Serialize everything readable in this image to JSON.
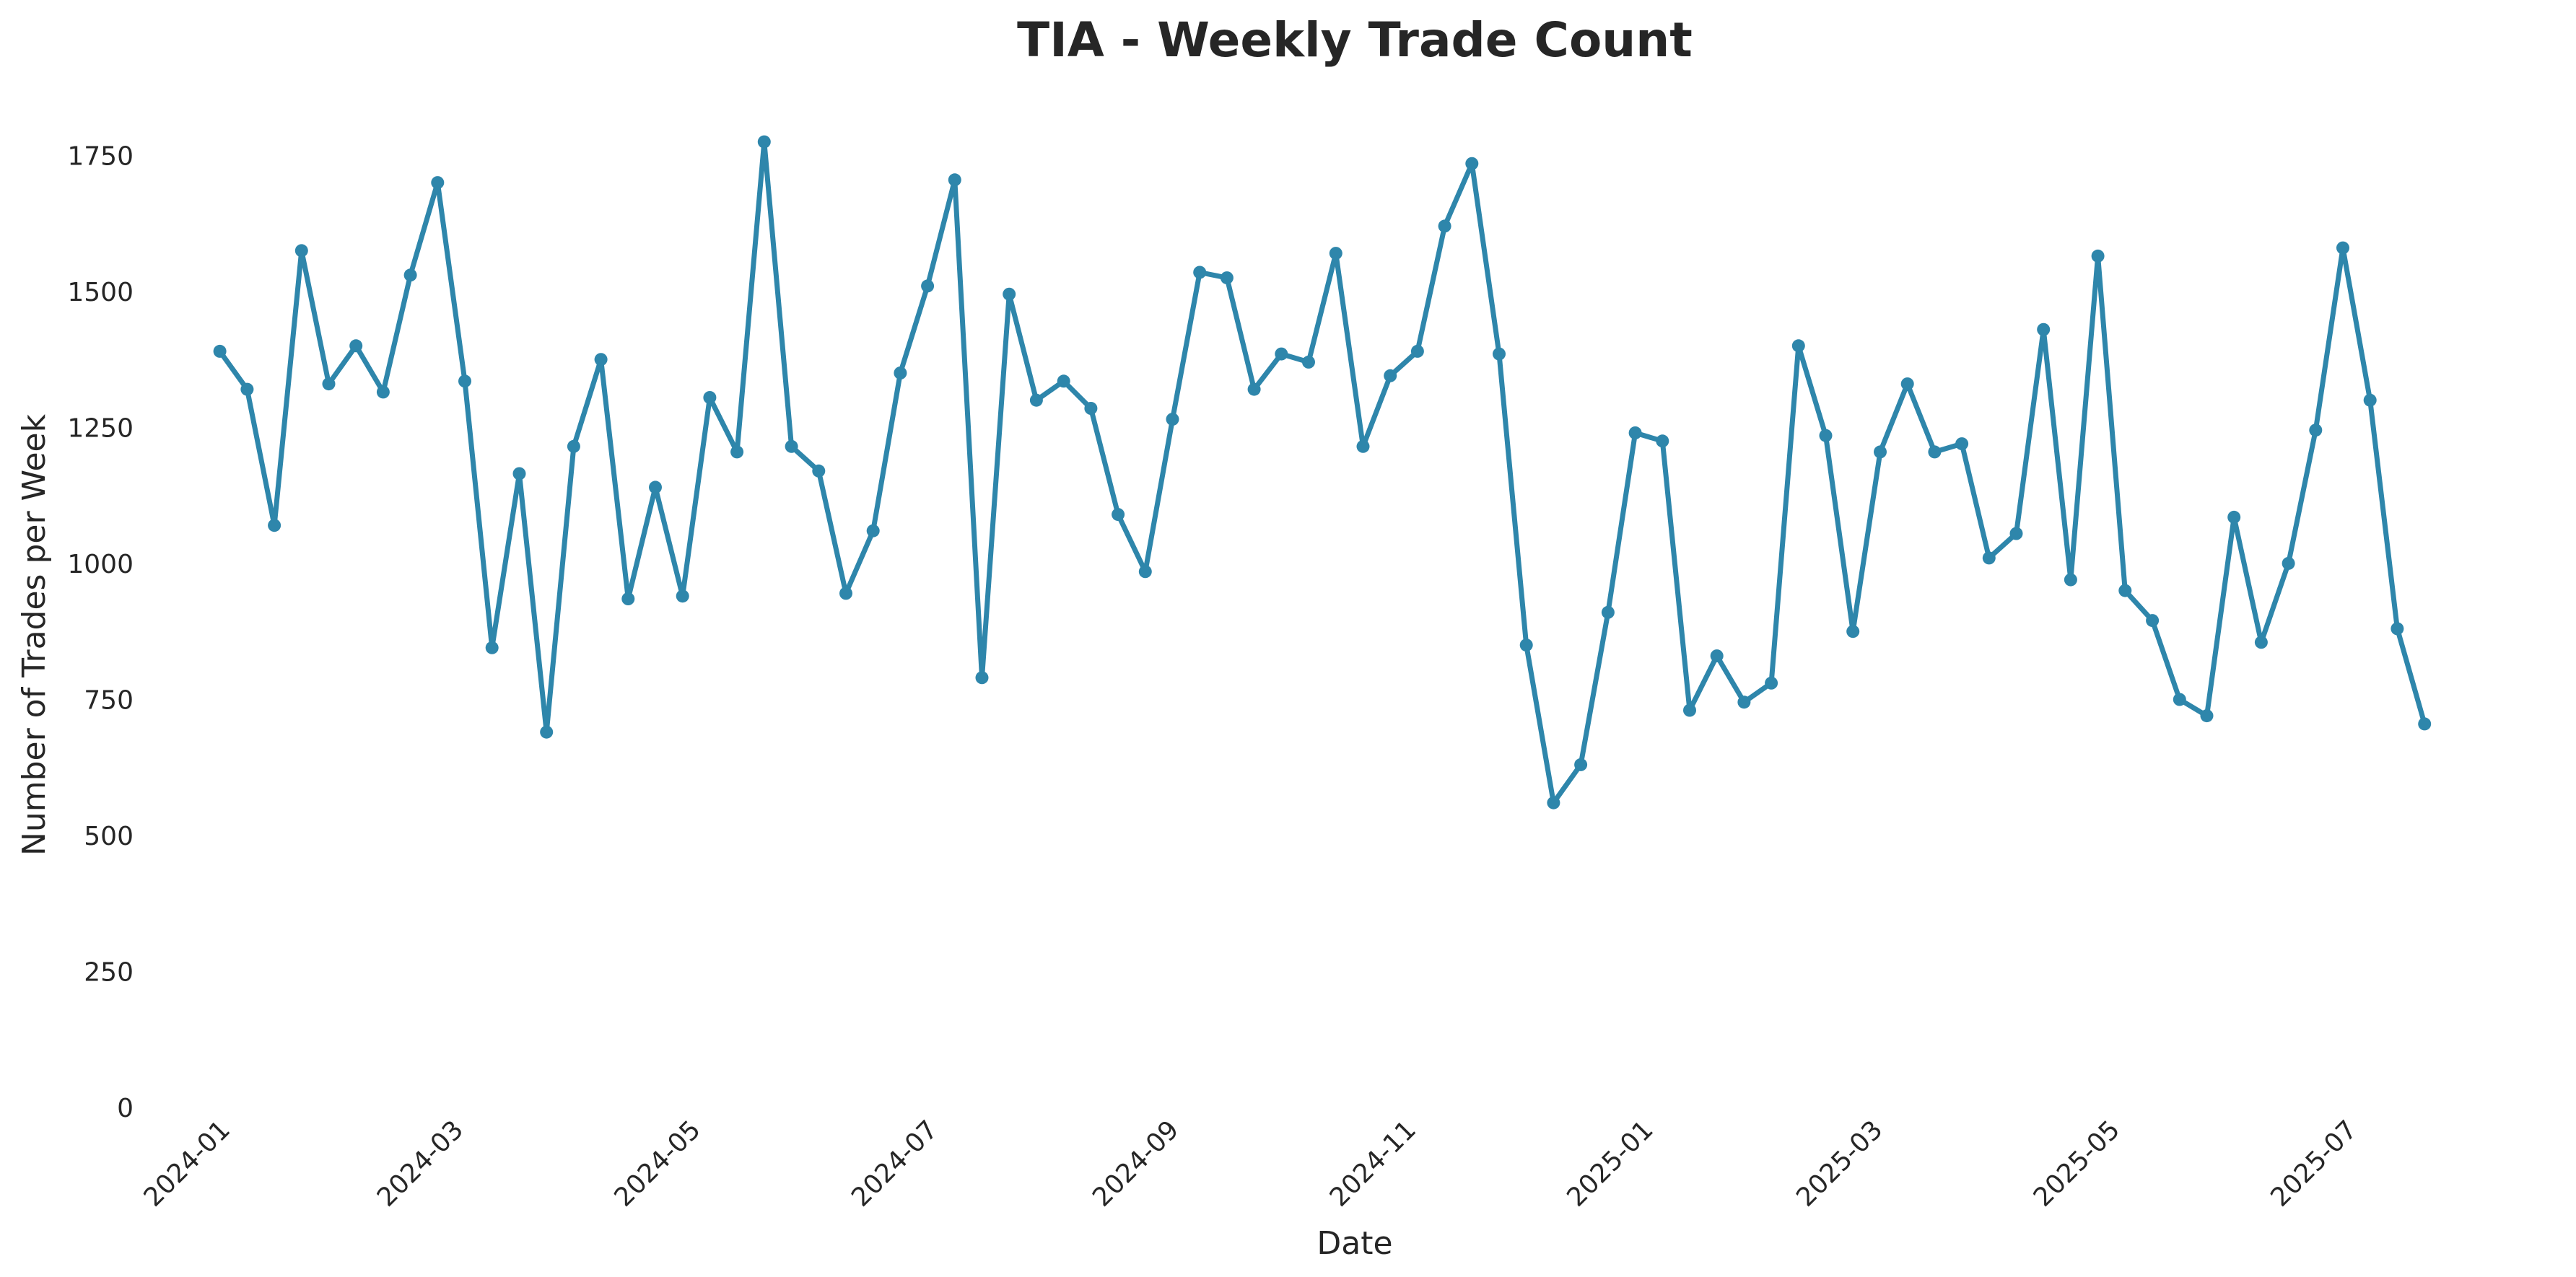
{
  "chart_data": {
    "type": "line",
    "title": "TIA - Weekly Trade Count",
    "xlabel": "Date",
    "ylabel": "Number of Trades per Week",
    "ylim": [
      0,
      1850
    ],
    "yticks": [
      0,
      250,
      500,
      750,
      1000,
      1250,
      1500,
      1750
    ],
    "x_range": [
      "2023-12-20",
      "2025-08-18"
    ],
    "xtick_dates": [
      "2024-01-01",
      "2024-03-01",
      "2024-05-01",
      "2024-07-01",
      "2024-09-01",
      "2024-11-01",
      "2025-01-01",
      "2025-03-01",
      "2025-05-01",
      "2025-07-01"
    ],
    "xtick_labels": [
      "2024-01",
      "2024-03",
      "2024-05",
      "2024-07",
      "2024-09",
      "2024-11",
      "2025-01",
      "2025-03",
      "2025-05",
      "2025-07"
    ],
    "grid": false,
    "color": "#2e86ab",
    "series": [
      {
        "x": [
          "2024-01-01",
          "2024-01-08",
          "2024-01-15",
          "2024-01-22",
          "2024-01-29",
          "2024-02-05",
          "2024-02-12",
          "2024-02-19",
          "2024-02-26",
          "2024-03-04",
          "2024-03-11",
          "2024-03-18",
          "2024-03-25",
          "2024-04-01",
          "2024-04-08",
          "2024-04-15",
          "2024-04-22",
          "2024-04-29",
          "2024-05-06",
          "2024-05-13",
          "2024-05-20",
          "2024-05-27",
          "2024-06-03",
          "2024-06-10",
          "2024-06-17",
          "2024-06-24",
          "2024-07-01",
          "2024-07-08",
          "2024-07-15",
          "2024-07-22",
          "2024-07-29",
          "2024-08-05",
          "2024-08-12",
          "2024-08-19",
          "2024-08-26",
          "2024-09-02",
          "2024-09-09",
          "2024-09-16",
          "2024-09-23",
          "2024-09-30",
          "2024-10-07",
          "2024-10-14",
          "2024-10-21",
          "2024-10-28",
          "2024-11-04",
          "2024-11-11",
          "2024-11-18",
          "2024-11-25",
          "2024-12-02",
          "2024-12-09",
          "2024-12-16",
          "2024-12-23",
          "2024-12-30",
          "2025-01-06",
          "2025-01-13",
          "2025-01-20",
          "2025-01-27",
          "2025-02-03",
          "2025-02-10",
          "2025-02-17",
          "2025-02-24",
          "2025-03-03",
          "2025-03-10",
          "2025-03-17",
          "2025-03-24",
          "2025-03-31",
          "2025-04-07",
          "2025-04-14",
          "2025-04-21",
          "2025-04-28",
          "2025-05-05",
          "2025-05-12",
          "2025-05-19",
          "2025-05-26",
          "2025-06-02",
          "2025-06-09",
          "2025-06-16",
          "2025-06-23",
          "2025-06-30",
          "2025-07-07",
          "2025-07-14",
          "2025-07-21"
        ],
        "values": [
          1390,
          1320,
          1070,
          1575,
          1330,
          1400,
          1315,
          1530,
          1700,
          1335,
          845,
          1165,
          690,
          1215,
          1375,
          935,
          1140,
          940,
          1305,
          1205,
          1775,
          1215,
          1170,
          945,
          1060,
          1350,
          1510,
          1705,
          790,
          1495,
          1300,
          1335,
          1285,
          1090,
          985,
          1265,
          1535,
          1525,
          1320,
          1385,
          1370,
          1570,
          1215,
          1345,
          1390,
          1620,
          1735,
          1385,
          850,
          560,
          630,
          910,
          1240,
          1225,
          730,
          830,
          745,
          780,
          1400,
          1235,
          875,
          1205,
          1330,
          1205,
          1220,
          1010,
          1055,
          1430,
          970,
          1565,
          950,
          895,
          750,
          720,
          1085,
          855,
          1000,
          1245,
          1580,
          1300,
          880,
          705
        ]
      }
    ]
  }
}
